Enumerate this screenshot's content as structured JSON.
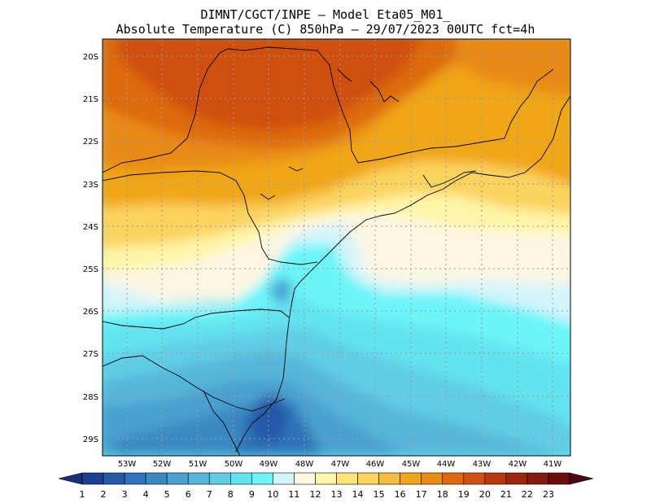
{
  "title_line1": "DIMNT/CGCT/INPE —  Model Eta05_M01_",
  "title_line2": "Absolute Temperature (C) 850hPa —  29/07/2023 00UTC fct=4h",
  "map": {
    "lat_labels": [
      "20S",
      "21S",
      "22S",
      "23S",
      "24S",
      "25S",
      "26S",
      "27S",
      "28S",
      "29S"
    ],
    "lon_labels": [
      "53W",
      "52W",
      "51W",
      "50W",
      "49W",
      "48W",
      "47W",
      "46W",
      "45W",
      "44W",
      "43W",
      "42W",
      "41W"
    ]
  },
  "colorbar": {
    "labels": [
      "1",
      "2",
      "3",
      "4",
      "5",
      "6",
      "7",
      "8",
      "9",
      "10",
      "11",
      "12",
      "13",
      "14",
      "15",
      "16",
      "17",
      "18",
      "19",
      "20",
      "21",
      "22",
      "23"
    ],
    "colors": [
      "#1c3f8f",
      "#2559a8",
      "#2f73b8",
      "#3a89c3",
      "#4aa0cf",
      "#57b6d9",
      "#61cde5",
      "#63e3f0",
      "#6cf5f9",
      "#d4f4fb",
      "#fcf6e3",
      "#fff5a8",
      "#ffe47a",
      "#fbd35f",
      "#f6bd3d",
      "#f0a619",
      "#e98a12",
      "#dd6a10",
      "#cf5011",
      "#b8390f",
      "#9e2610",
      "#851a10",
      "#6a0e12"
    ],
    "left_arrow_color": "#1a2f7a",
    "right_arrow_color": "#4a0a10"
  }
}
